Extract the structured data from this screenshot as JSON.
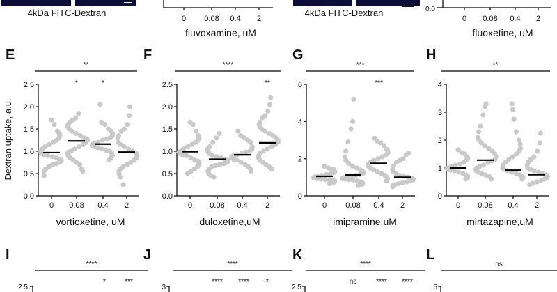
{
  "top_strip": {
    "left_image_label": "4kDa FITC-Dextran",
    "right_image_label": "4kDa FITC-Dextran",
    "charts": [
      {
        "xlabel": "fluvoxamine, uM",
        "categories": [
          "0",
          "0.08",
          "0.4",
          "2"
        ]
      },
      {
        "xlabel": "fluoxetine, uM",
        "categories": [
          "0",
          "0.08",
          "0.4",
          "2"
        ],
        "y_tick_visible": "0.0"
      }
    ]
  },
  "shared_ylabel": "Dextran uptake, a.u.",
  "chart_data": [
    {
      "type": "scatter",
      "panel": "E",
      "xlabel": "vortioxetine, uM",
      "categories": [
        "0",
        "0.08",
        "0.4",
        "2"
      ],
      "ylim": [
        0,
        2.5
      ],
      "yticks": [
        "0.0",
        "0.5",
        "1.0",
        "1.5",
        "2.0",
        "2.5"
      ],
      "means": [
        0.97,
        1.23,
        1.16,
        0.98
      ],
      "overall_sig": "**",
      "point_sig": [
        "",
        "*",
        "*",
        ""
      ],
      "points": [
        [
          1.7,
          1.6,
          1.45,
          1.4,
          1.35,
          1.3,
          1.25,
          1.2,
          1.15,
          1.1,
          1.05,
          1.0,
          0.95,
          0.92,
          0.9,
          0.88,
          0.85,
          0.82,
          0.8,
          0.78,
          0.75,
          0.72,
          0.7,
          0.65,
          0.6,
          0.55,
          0.45
        ],
        [
          1.85,
          1.75,
          1.7,
          1.65,
          1.6,
          1.55,
          1.5,
          1.45,
          1.4,
          1.35,
          1.3,
          1.28,
          1.25,
          1.2,
          1.15,
          1.1,
          1.05,
          1.0,
          0.98,
          0.95,
          0.9,
          0.85,
          0.8,
          0.75,
          0.7,
          0.6,
          0.55
        ],
        [
          2.05,
          1.65,
          1.6,
          1.5,
          1.45,
          1.4,
          1.35,
          1.3,
          1.28,
          1.25,
          1.2,
          1.18,
          1.15,
          1.12,
          1.1,
          1.08,
          1.05,
          1.02,
          1.0,
          0.95,
          0.9,
          0.85,
          0.8
        ],
        [
          2.0,
          1.8,
          1.6,
          1.5,
          1.45,
          1.35,
          1.3,
          1.2,
          1.15,
          1.1,
          1.05,
          1.0,
          0.95,
          0.9,
          0.85,
          0.8,
          0.75,
          0.7,
          0.65,
          0.6,
          0.55,
          0.5,
          0.42,
          0.25
        ]
      ]
    },
    {
      "type": "scatter",
      "panel": "F",
      "xlabel": "duloxetine,uM",
      "categories": [
        "0",
        "0.08",
        "0.4",
        "2"
      ],
      "ylim": [
        0,
        2.5
      ],
      "yticks": [
        "0.0",
        "0.5",
        "1.0",
        "1.5",
        "2.0",
        "2.5"
      ],
      "means": [
        0.99,
        0.82,
        0.92,
        1.19
      ],
      "overall_sig": "****",
      "point_sig": [
        "",
        "",
        "",
        "**"
      ],
      "points": [
        [
          1.65,
          1.6,
          1.45,
          1.35,
          1.3,
          1.25,
          1.2,
          1.15,
          1.1,
          1.05,
          1.0,
          0.98,
          0.95,
          0.92,
          0.9,
          0.85,
          0.8,
          0.78,
          0.75,
          0.7,
          0.65,
          0.6,
          0.55,
          0.5
        ],
        [
          1.4,
          1.3,
          1.2,
          1.1,
          1.05,
          1.0,
          0.95,
          0.9,
          0.88,
          0.85,
          0.82,
          0.8,
          0.78,
          0.75,
          0.72,
          0.7,
          0.68,
          0.65,
          0.6,
          0.55,
          0.5,
          0.45,
          0.42
        ],
        [
          1.45,
          1.35,
          1.3,
          1.25,
          1.2,
          1.1,
          1.05,
          1.0,
          0.98,
          0.95,
          0.92,
          0.9,
          0.88,
          0.85,
          0.82,
          0.8,
          0.75,
          0.7,
          0.65,
          0.6,
          0.55
        ],
        [
          2.2,
          2.05,
          1.9,
          1.8,
          1.75,
          1.65,
          1.6,
          1.55,
          1.5,
          1.45,
          1.4,
          1.35,
          1.3,
          1.25,
          1.2,
          1.15,
          1.1,
          1.05,
          1.0,
          0.95,
          0.9,
          0.85,
          0.8,
          0.75,
          0.7,
          0.65,
          0.6
        ]
      ]
    },
    {
      "type": "scatter",
      "panel": "G",
      "xlabel": "imipramine,uM",
      "categories": [
        "0",
        "0.08",
        "0.4",
        "2"
      ],
      "ylim": [
        0,
        6
      ],
      "yticks": [
        "0",
        "2",
        "4",
        "6"
      ],
      "means": [
        1.05,
        1.12,
        1.75,
        1.0
      ],
      "overall_sig": "***",
      "point_sig": [
        "",
        "",
        "***",
        ""
      ],
      "points": [
        [
          1.6,
          1.5,
          1.45,
          1.4,
          1.3,
          1.25,
          1.2,
          1.15,
          1.1,
          1.05,
          1.0,
          0.98,
          0.95,
          0.92,
          0.9,
          0.88,
          0.85,
          0.82,
          0.8,
          0.75,
          0.7,
          0.65
        ],
        [
          5.2,
          4.0,
          3.6,
          2.9,
          2.4,
          2.1,
          1.9,
          1.75,
          1.6,
          1.5,
          1.4,
          1.3,
          1.25,
          1.2,
          1.15,
          1.1,
          1.05,
          1.0,
          0.98,
          0.95,
          0.92,
          0.9,
          0.88,
          0.85,
          0.8,
          0.75,
          0.7,
          0.65,
          0.6,
          0.55
        ],
        [
          3.1,
          2.95,
          2.85,
          2.7,
          2.5,
          2.4,
          2.3,
          2.2,
          2.1,
          2.0,
          1.9,
          1.8,
          1.7,
          1.6,
          1.5,
          1.4,
          1.3,
          1.2,
          1.1,
          1.0,
          0.9,
          0.8
        ],
        [
          2.3,
          2.2,
          2.0,
          1.9,
          1.8,
          1.6,
          1.4,
          1.3,
          1.2,
          1.1,
          1.05,
          1.0,
          0.95,
          0.9,
          0.85,
          0.8,
          0.75,
          0.7,
          0.65,
          0.6,
          0.55,
          0.5
        ]
      ]
    },
    {
      "type": "scatter",
      "panel": "H",
      "xlabel": "mirtazapine,uM",
      "categories": [
        "0",
        "0.08",
        "0.4",
        "2"
      ],
      "ylim": [
        0,
        4
      ],
      "yticks": [
        "0",
        "1",
        "2",
        "3",
        "4"
      ],
      "means": [
        1.0,
        1.28,
        0.92,
        0.76
      ],
      "overall_sig": "**",
      "point_sig": [
        "",
        "",
        "",
        ""
      ],
      "points": [
        [
          1.65,
          1.55,
          1.5,
          1.4,
          1.35,
          1.3,
          1.2,
          1.15,
          1.1,
          1.05,
          1.0,
          0.98,
          0.95,
          0.92,
          0.9,
          0.85,
          0.8,
          0.75,
          0.7,
          0.65,
          0.6
        ],
        [
          3.3,
          3.2,
          2.9,
          2.5,
          2.3,
          2.1,
          2.0,
          1.9,
          1.8,
          1.7,
          1.6,
          1.5,
          1.4,
          1.3,
          1.25,
          1.2,
          1.1,
          1.05,
          1.0,
          0.95,
          0.9,
          0.85,
          0.8,
          0.75,
          0.7,
          0.6
        ],
        [
          3.3,
          3.1,
          2.75,
          2.3,
          2.0,
          1.85,
          1.7,
          1.6,
          1.5,
          1.4,
          1.3,
          1.2,
          1.1,
          1.0,
          0.95,
          0.9,
          0.85,
          0.8,
          0.75,
          0.7,
          0.65,
          0.6
        ],
        [
          2.25,
          1.9,
          1.6,
          1.4,
          1.3,
          1.2,
          1.1,
          1.0,
          0.95,
          0.9,
          0.85,
          0.8,
          0.75,
          0.7,
          0.65,
          0.6,
          0.55,
          0.5,
          0.45,
          0.4
        ]
      ]
    }
  ],
  "bottom_row": {
    "panels": [
      {
        "letter": "I",
        "overall_sig": "****",
        "sigs": [
          "",
          "",
          "*",
          "***"
        ],
        "top_tick": "2.5"
      },
      {
        "letter": "J",
        "overall_sig": "****",
        "sigs": [
          "",
          "****",
          "****",
          "*"
        ],
        "top_tick": "3"
      },
      {
        "letter": "K",
        "overall_sig": "****",
        "sigs": [
          "",
          "ns",
          "****",
          "****"
        ],
        "top_tick": "2.5"
      },
      {
        "letter": "L",
        "overall_sig": "ns",
        "sigs": [
          "",
          "",
          "",
          ""
        ],
        "top_tick": "5"
      }
    ]
  }
}
